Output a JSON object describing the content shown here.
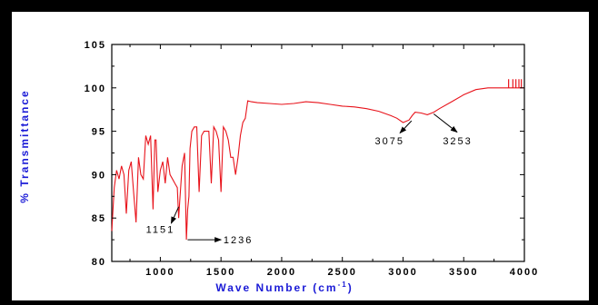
{
  "chart_data": {
    "type": "line",
    "title": "",
    "xlabel": "Wave Number (cm",
    "xlabel_sup": "-1",
    "xlabel_close": ")",
    "ylabel": "% Transmittance",
    "xlim": [
      600,
      4000
    ],
    "ylim": [
      80,
      105
    ],
    "grid": false,
    "legend": "none",
    "line_color": "#e8131b",
    "label_color": "#1a1ad6",
    "x_ticks": [
      1000,
      1500,
      2000,
      2500,
      3000,
      3500,
      4000
    ],
    "x_tick_labels": [
      "1000",
      "1500",
      "2000",
      "2500",
      "3000",
      "3500",
      "4000"
    ],
    "y_ticks": [
      80,
      85,
      90,
      95,
      100,
      105
    ],
    "y_tick_labels": [
      "80",
      "85",
      "90",
      "95",
      "100",
      "105"
    ],
    "series": [
      {
        "x": [
          600,
          620,
          640,
          660,
          680,
          700,
          720,
          740,
          760,
          780,
          800,
          820,
          840,
          860,
          880,
          900,
          920,
          940,
          955,
          965,
          980,
          1000,
          1020,
          1040,
          1060,
          1080,
          1100,
          1120,
          1140,
          1151,
          1160,
          1180,
          1200,
          1215,
          1225,
          1236,
          1245,
          1260,
          1280,
          1300,
          1320,
          1340,
          1360,
          1380,
          1400,
          1420,
          1440,
          1460,
          1480,
          1500,
          1520,
          1540,
          1560,
          1580,
          1600,
          1620,
          1640,
          1660,
          1680,
          1700,
          1720,
          1750,
          1800,
          1900,
          2000,
          2100,
          2200,
          2300,
          2400,
          2500,
          2600,
          2700,
          2800,
          2900,
          2950,
          3000,
          3050,
          3075,
          3100,
          3150,
          3200,
          3253,
          3300,
          3400,
          3500,
          3600,
          3700,
          3750,
          3800,
          3850,
          3900,
          3950,
          4000
        ],
        "y": [
          83.5,
          88.5,
          90.5,
          89.5,
          91,
          90,
          85.5,
          90.5,
          91.5,
          88,
          84.5,
          92,
          90,
          89.5,
          94.5,
          93.5,
          94.5,
          86,
          94,
          94,
          88,
          90.5,
          91.5,
          89,
          92,
          90,
          89.5,
          89,
          88.5,
          85,
          87,
          91,
          92.5,
          82.5,
          86,
          87.5,
          93,
          95,
          95.5,
          95.5,
          88,
          94.5,
          95,
          95,
          95,
          89,
          95.5,
          95,
          94,
          88,
          95.5,
          95,
          94,
          92,
          92,
          90,
          92,
          94.5,
          96,
          96.5,
          98.5,
          98.4,
          98.3,
          98.2,
          98.1,
          98.2,
          98.4,
          98.3,
          98.1,
          97.9,
          97.8,
          97.6,
          97.3,
          96.8,
          96.5,
          96,
          96.3,
          96.8,
          97.2,
          97.1,
          96.9,
          97.2,
          97.6,
          98.4,
          99.2,
          99.8,
          100,
          100,
          100,
          100,
          100,
          100,
          100
        ]
      }
    ]
  },
  "annotations": [
    {
      "label": "1151",
      "x": 1151,
      "y": 85
    },
    {
      "label": "1236",
      "x": 1215,
      "y": 82.5
    },
    {
      "label": "3075",
      "x": 3075,
      "y": 96
    },
    {
      "label": "3253",
      "x": 3253,
      "y": 97
    }
  ]
}
